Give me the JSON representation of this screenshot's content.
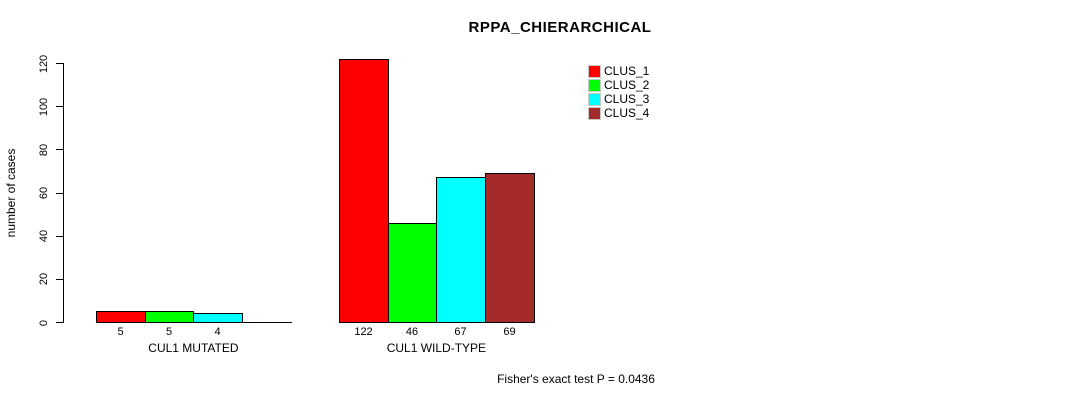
{
  "chart_data": {
    "type": "bar",
    "title": "RPPA_CHIERARCHICAL",
    "ylabel": "number of cases",
    "xlabel": "",
    "ylim": [
      0,
      120
    ],
    "yticks": [
      0,
      20,
      40,
      60,
      80,
      100,
      120
    ],
    "grid": false,
    "legend_position": "top-right",
    "series": [
      {
        "name": "CLUS_1",
        "color": "#ff0000"
      },
      {
        "name": "CLUS_2",
        "color": "#00ff00"
      },
      {
        "name": "CLUS_3",
        "color": "#00ffff"
      },
      {
        "name": "CLUS_4",
        "color": "#a52a2a"
      }
    ],
    "categories": [
      "CUL1 MUTATED",
      "CUL1 WILD-TYPE"
    ],
    "groups": [
      {
        "label": "CUL1 MUTATED",
        "values": [
          5,
          5,
          4,
          0
        ],
        "bar_labels": [
          "5",
          "5",
          "4",
          ""
        ]
      },
      {
        "label": "CUL1 WILD-TYPE",
        "values": [
          122,
          46,
          67,
          69
        ],
        "bar_labels": [
          "122",
          "46",
          "67",
          "69"
        ]
      }
    ],
    "annotation": "Fisher's exact test P = 0.0436"
  }
}
